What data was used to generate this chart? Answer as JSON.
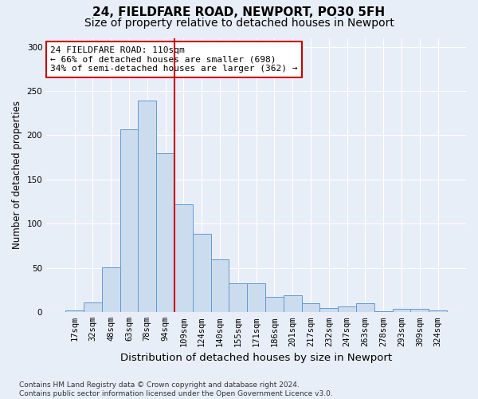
{
  "title": "24, FIELDFARE ROAD, NEWPORT, PO30 5FH",
  "subtitle": "Size of property relative to detached houses in Newport",
  "xlabel": "Distribution of detached houses by size in Newport",
  "ylabel": "Number of detached properties",
  "categories": [
    "17sqm",
    "32sqm",
    "48sqm",
    "63sqm",
    "78sqm",
    "94sqm",
    "109sqm",
    "124sqm",
    "140sqm",
    "155sqm",
    "171sqm",
    "186sqm",
    "201sqm",
    "217sqm",
    "232sqm",
    "247sqm",
    "263sqm",
    "278sqm",
    "293sqm",
    "309sqm",
    "324sqm"
  ],
  "values": [
    2,
    11,
    51,
    207,
    239,
    180,
    122,
    89,
    60,
    33,
    33,
    17,
    19,
    10,
    5,
    7,
    10,
    1,
    4,
    4,
    2
  ],
  "bar_color": "#ccdcef",
  "bar_edge_color": "#6699cc",
  "vline_x_index": 6,
  "vline_color": "#cc0000",
  "annotation_text": "24 FIELDFARE ROAD: 110sqm\n← 66% of detached houses are smaller (698)\n34% of semi-detached houses are larger (362) →",
  "annotation_box_facecolor": "#ffffff",
  "annotation_box_edgecolor": "#cc0000",
  "ylim": [
    0,
    310
  ],
  "yticks": [
    0,
    50,
    100,
    150,
    200,
    250,
    300
  ],
  "bg_color": "#e8eef8",
  "plot_bg": "#e8eef8",
  "footer": "Contains HM Land Registry data © Crown copyright and database right 2024.\nContains public sector information licensed under the Open Government Licence v3.0.",
  "title_fontsize": 11,
  "subtitle_fontsize": 10,
  "xlabel_fontsize": 9.5,
  "ylabel_fontsize": 8.5,
  "tick_fontsize": 7.5,
  "annotation_fontsize": 8,
  "footer_fontsize": 6.5,
  "grid_color": "#ffffff",
  "grid_linewidth": 0.8
}
